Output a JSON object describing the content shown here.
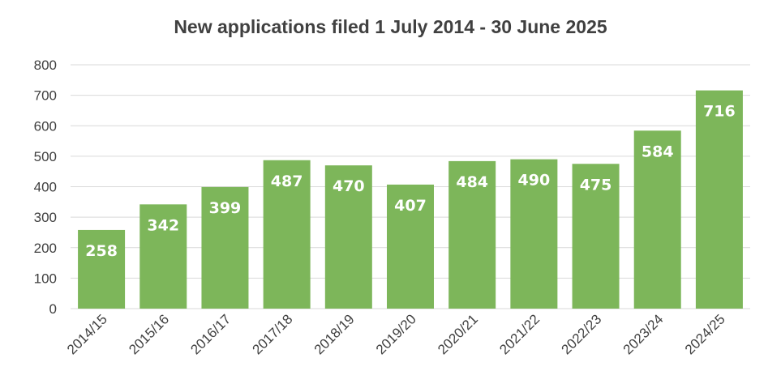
{
  "chart_data": {
    "type": "bar",
    "title": "New applications filed 1 July 2014 - 30 June 2025",
    "xlabel": "",
    "ylabel": "",
    "categories": [
      "2014/15",
      "2015/16",
      "2016/17",
      "2017/18",
      "2018/19",
      "2019/20",
      "2020/21",
      "2021/22",
      "2022/23",
      "2023/24",
      "2024/25"
    ],
    "values": [
      258,
      342,
      399,
      487,
      470,
      407,
      484,
      490,
      475,
      584,
      716
    ],
    "ylim": [
      0,
      800
    ],
    "yticks": [
      0,
      100,
      200,
      300,
      400,
      500,
      600,
      700,
      800
    ],
    "grid": true,
    "legend": "none",
    "bar_color": "#7db65a",
    "grid_color": "#d9d9d9",
    "text_color": "#404040"
  }
}
